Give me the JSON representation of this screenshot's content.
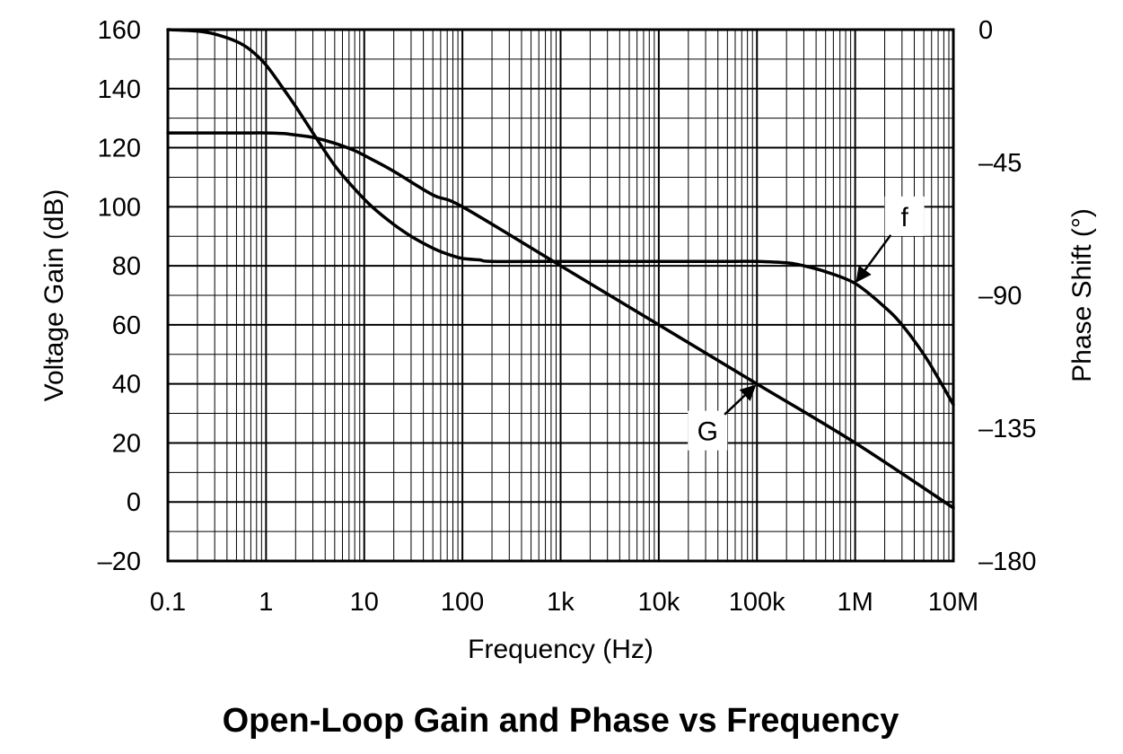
{
  "chart_data": {
    "type": "line",
    "title": "Open-Loop Gain and Phase vs Frequency",
    "xlabel": "Frequency (Hz)",
    "ylabel_left": "Voltage Gain (dB)",
    "ylabel_right": "Phase Shift (°)",
    "x_scale": "log",
    "xlim": [
      0.1,
      10000000
    ],
    "ylim_left": [
      -20,
      160
    ],
    "ylim_right": [
      -180,
      0
    ],
    "grid": true,
    "x_ticks": [
      {
        "value": 0.1,
        "label": "0.1"
      },
      {
        "value": 1,
        "label": "1"
      },
      {
        "value": 10,
        "label": "10"
      },
      {
        "value": 100,
        "label": "100"
      },
      {
        "value": 1000,
        "label": "1k"
      },
      {
        "value": 10000,
        "label": "10k"
      },
      {
        "value": 100000,
        "label": "100k"
      },
      {
        "value": 1000000,
        "label": "1M"
      },
      {
        "value": 10000000,
        "label": "10M"
      }
    ],
    "y_left_ticks": [
      {
        "value": 160,
        "label": "160"
      },
      {
        "value": 140,
        "label": "140"
      },
      {
        "value": 120,
        "label": "120"
      },
      {
        "value": 100,
        "label": "100"
      },
      {
        "value": 80,
        "label": "80"
      },
      {
        "value": 60,
        "label": "60"
      },
      {
        "value": 40,
        "label": "40"
      },
      {
        "value": 20,
        "label": "20"
      },
      {
        "value": 0,
        "label": "0"
      },
      {
        "value": -20,
        "label": "–20"
      }
    ],
    "y_right_ticks": [
      {
        "value": 0,
        "label": "0"
      },
      {
        "value": -45,
        "label": "–45"
      },
      {
        "value": -90,
        "label": "–90"
      },
      {
        "value": -135,
        "label": "–135"
      },
      {
        "value": -180,
        "label": "–180"
      }
    ],
    "series": [
      {
        "name": "G",
        "axis": "left",
        "x": [
          0.1,
          0.3,
          0.6,
          1,
          1.5,
          2,
          3,
          5,
          8,
          12,
          20,
          50,
          100,
          1000,
          10000,
          100000,
          1000000,
          10000000
        ],
        "y": [
          125,
          125,
          125,
          125,
          124.8,
          124.3,
          123.5,
          121.5,
          119,
          116,
          112,
          104,
          100,
          80,
          60,
          40,
          20,
          -2
        ]
      },
      {
        "name": "f",
        "axis": "right",
        "x": [
          0.1,
          0.2,
          0.3,
          0.5,
          0.7,
          1,
          1.5,
          2,
          3,
          5,
          8,
          12,
          20,
          30,
          50,
          70,
          100,
          150,
          200,
          1000,
          10000,
          50000,
          100000,
          200000,
          300000,
          500000,
          1000000,
          2000000,
          3000000,
          5000000,
          7000000,
          10000000
        ],
        "y": [
          0,
          -0.5,
          -1.5,
          -4,
          -7,
          -12,
          -20,
          -26,
          -35,
          -46,
          -54,
          -60,
          -66,
          -70,
          -74,
          -76,
          -77.5,
          -78,
          -78.5,
          -78.5,
          -78.5,
          -78.5,
          -78.5,
          -79,
          -80,
          -82,
          -86,
          -94,
          -100,
          -110,
          -118,
          -127
        ]
      }
    ],
    "annotations": [
      {
        "label": "f",
        "series": "f",
        "x": 1000000,
        "y": -86
      },
      {
        "label": "G",
        "series": "G",
        "x": 100000,
        "y": 40
      }
    ]
  }
}
